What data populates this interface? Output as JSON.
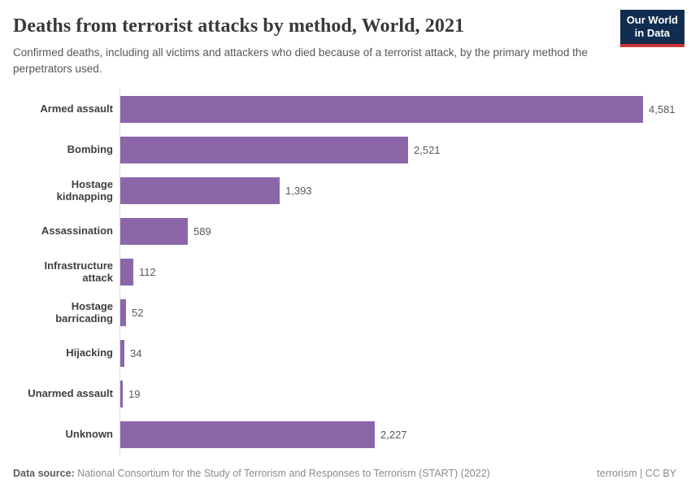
{
  "header": {
    "title": "Deaths from terrorist attacks by method, World, 2021",
    "subtitle": "Confirmed deaths, including all victims and attackers who died because of a terrorist attack, by the primary method the perpetrators used.",
    "logo": {
      "line1": "Our World",
      "line2": "in Data"
    }
  },
  "chart_data": {
    "type": "bar",
    "orientation": "horizontal",
    "title": "Deaths from terrorist attacks by method, World, 2021",
    "categories": [
      "Armed assault",
      "Bombing",
      "Hostage kidnapping",
      "Assassination",
      "Infrastructure attack",
      "Hostage barricading",
      "Hijacking",
      "Unarmed assault",
      "Unknown"
    ],
    "values": [
      4581,
      2521,
      1393,
      589,
      112,
      52,
      34,
      19,
      2227
    ],
    "value_labels": [
      "4,581",
      "2,521",
      "1,393",
      "589",
      "112",
      "52",
      "34",
      "19",
      "2,227"
    ],
    "xlabel": "",
    "ylabel": "",
    "xlim": [
      0,
      4581
    ],
    "grid": false,
    "legend": false,
    "bar_color": "#8b67a9",
    "axis_line_color": "#d9d9d9"
  },
  "footer": {
    "source_label": "Data source:",
    "source_text": "National Consortium for the Study of Terrorism and Responses to Terrorism (START) (2022)",
    "license": "terrorism | CC BY"
  }
}
